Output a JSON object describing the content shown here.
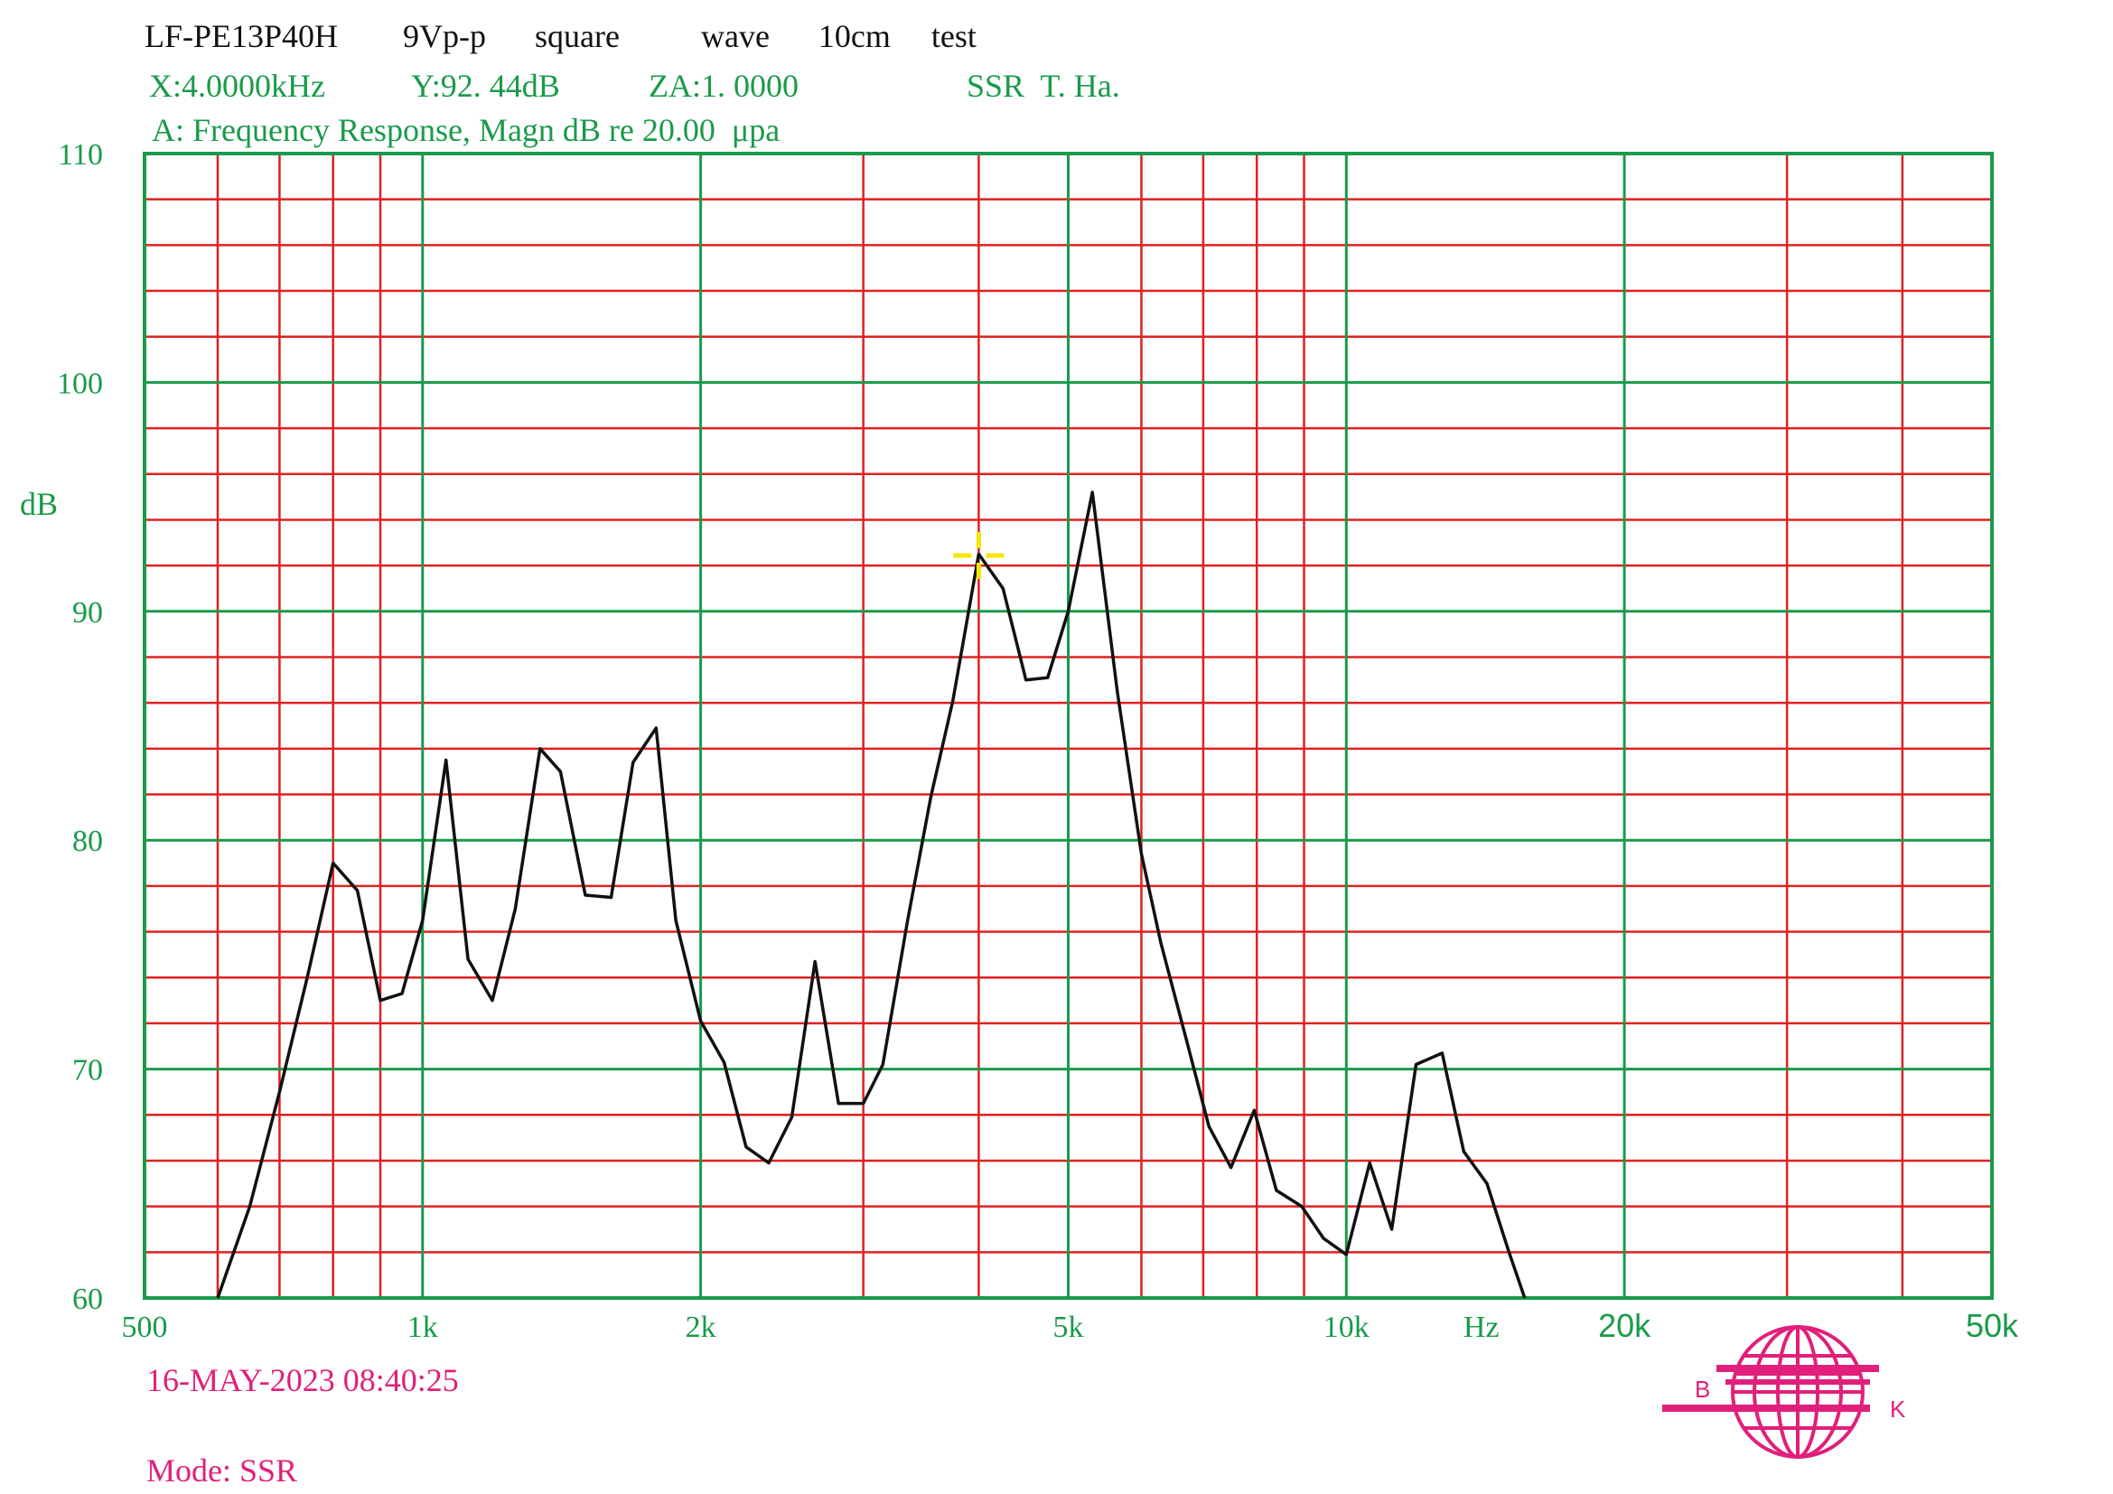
{
  "header": {
    "line1": "LF-PE13P40H        9Vp-p      square          wave      10cm     test",
    "readout_x": "X:4.0000kHz",
    "readout_y": "Y:92. 44dB",
    "readout_za": "ZA:1. 0000",
    "readout_ssr": "SSR  T. Ha.",
    "subtitle": "A: Frequency Response, Magn dB re 20.00  μpa"
  },
  "footer": {
    "timestamp": "16-MAY-2023 08:40:25",
    "mode": "Mode: SSR"
  },
  "logo": {
    "left_letter": "B",
    "right_letter": "K"
  },
  "colors": {
    "grid_major": "#1a9a4a",
    "grid_minor": "#e02020",
    "curve": "#111111",
    "cursor": "#f5e600",
    "accent": "#e0207a"
  },
  "chart_data": {
    "type": "line",
    "title": "A: Frequency Response, Magn dB re 20.00 μpa",
    "xlabel": "Hz",
    "ylabel": "dB",
    "x_scale": "log",
    "xlim": [
      500,
      50000
    ],
    "ylim": [
      60,
      110
    ],
    "grid": true,
    "x_tick_labels": [
      {
        "value": 500,
        "label": "500"
      },
      {
        "value": 1000,
        "label": "1k"
      },
      {
        "value": 2000,
        "label": "2k"
      },
      {
        "value": 5000,
        "label": "5k"
      },
      {
        "value": 10000,
        "label": "10k"
      },
      {
        "value": 14000,
        "label": "Hz"
      },
      {
        "value": 20000,
        "label": "20k"
      },
      {
        "value": 50000,
        "label": "50k"
      }
    ],
    "y_tick_labels": [
      {
        "value": 60,
        "label": "60"
      },
      {
        "value": 70,
        "label": "70"
      },
      {
        "value": 80,
        "label": "80"
      },
      {
        "value": 90,
        "label": "90"
      },
      {
        "value": 100,
        "label": "100"
      },
      {
        "value": 110,
        "label": "110"
      }
    ],
    "cursor": {
      "x": 4000,
      "y": 92.44
    },
    "series": [
      {
        "x": [
          600,
          650,
          700,
          750,
          800,
          850,
          900,
          950,
          1000,
          1060,
          1120,
          1190,
          1260,
          1340,
          1410,
          1500,
          1600,
          1690,
          1790,
          1880,
          2000,
          2120,
          2240,
          2370,
          2510,
          2660,
          2820,
          3000,
          3150,
          3350,
          3550,
          3750,
          4000,
          4250,
          4500,
          4750,
          5000,
          5310,
          5650,
          6000,
          6300,
          6700,
          7100,
          7500,
          7950,
          8400,
          8950,
          9450,
          10000,
          10600,
          11200,
          11900,
          12700,
          13400,
          14200,
          15000,
          15600
        ],
        "y": [
          60,
          64,
          69,
          74,
          79,
          77.8,
          73,
          73.3,
          76.5,
          83.5,
          74.8,
          73,
          77,
          84,
          83,
          77.6,
          77.5,
          83.4,
          84.9,
          76.5,
          72.1,
          70.3,
          66.6,
          65.9,
          67.9,
          74.7,
          68.5,
          68.5,
          70.2,
          76.5,
          81.9,
          86.1,
          92.5,
          91,
          87,
          87.1,
          90,
          95.2,
          86.5,
          79.4,
          75.5,
          71.4,
          67.5,
          65.7,
          68.2,
          64.7,
          64,
          62.6,
          61.9,
          65.9,
          63,
          70.2,
          70.7,
          66.4,
          65,
          62,
          60
        ]
      }
    ]
  }
}
